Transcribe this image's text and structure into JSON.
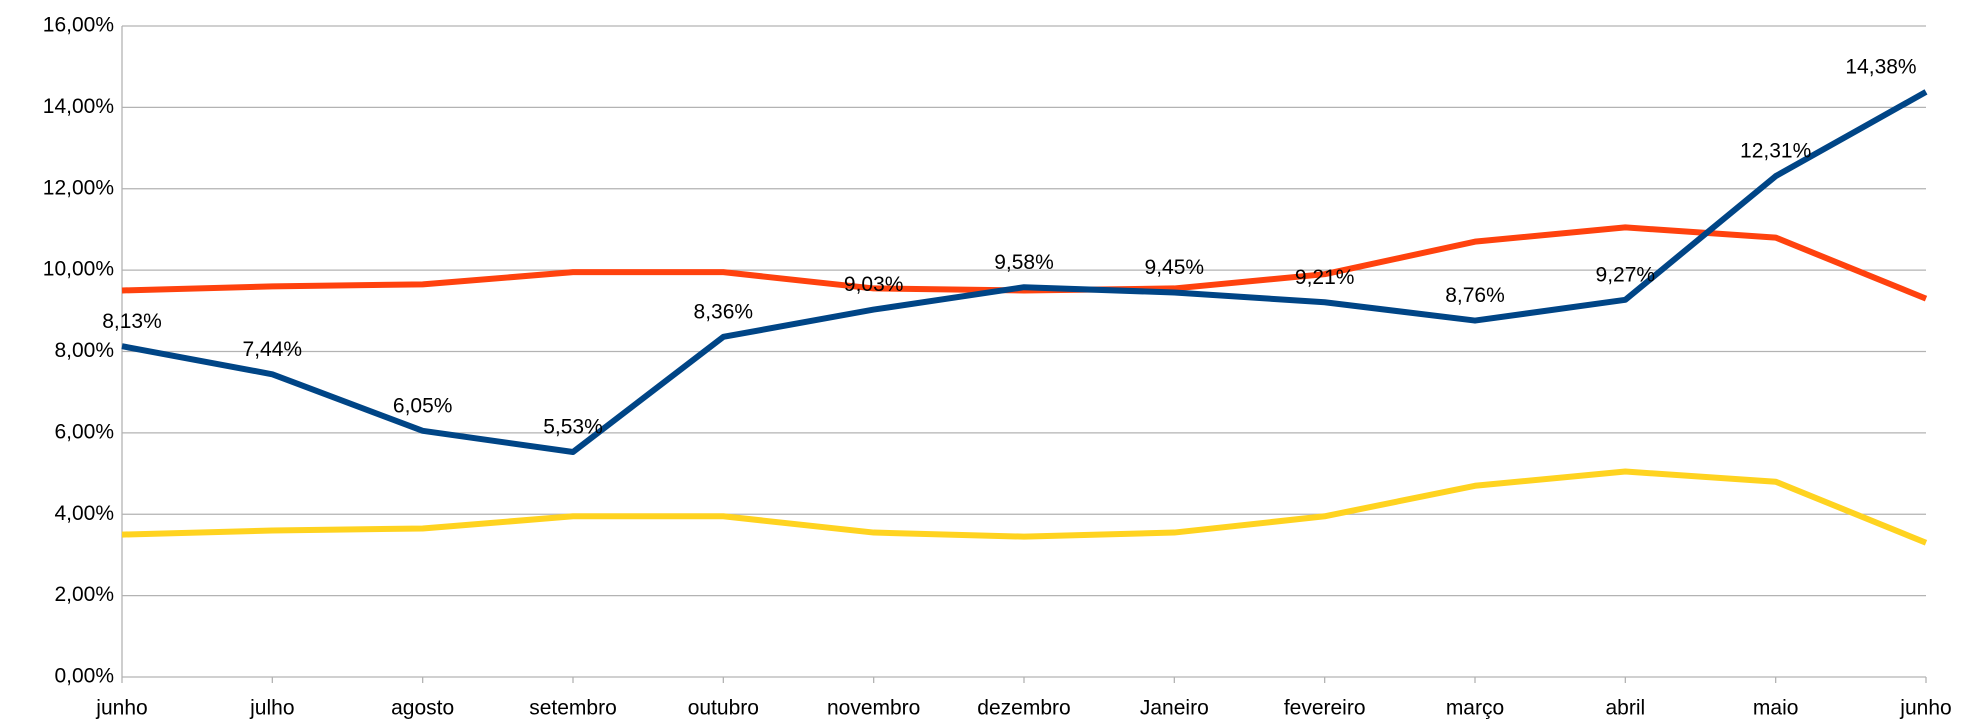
{
  "chart_data": {
    "type": "line",
    "categories": [
      "junho",
      "julho",
      "agosto",
      "setembro",
      "outubro",
      "novembro",
      "dezembro",
      "Janeiro",
      "fevereiro",
      "março",
      "abril",
      "maio",
      "junho"
    ],
    "series": [
      {
        "color": "#ff420e",
        "values": [
          9.5,
          9.6,
          9.65,
          9.95,
          9.95,
          9.55,
          9.5,
          9.55,
          9.9,
          10.7,
          11.05,
          10.8,
          9.3
        ]
      },
      {
        "color": "#ffd320",
        "values": [
          3.5,
          3.6,
          3.65,
          3.95,
          3.95,
          3.55,
          3.45,
          3.55,
          3.95,
          4.7,
          5.05,
          4.8,
          3.3
        ]
      },
      {
        "color": "#004586",
        "values": [
          8.13,
          7.44,
          6.05,
          5.53,
          8.36,
          9.03,
          9.58,
          9.45,
          9.21,
          8.76,
          9.27,
          12.31,
          14.38
        ],
        "value_labels": [
          "8,13%",
          "7,44%",
          "6,05%",
          "5,53%",
          "8,36%",
          "9,03%",
          "9,58%",
          "9,45%",
          "9,21%",
          "8,76%",
          "9,27%",
          "12,31%",
          "14,38%"
        ]
      }
    ],
    "ylim": [
      0,
      16
    ],
    "yticks": [
      {
        "value": 0,
        "label": "0,00%"
      },
      {
        "value": 2,
        "label": "2,00%"
      },
      {
        "value": 4,
        "label": "4,00%"
      },
      {
        "value": 6,
        "label": "6,00%"
      },
      {
        "value": 8,
        "label": "8,00%"
      },
      {
        "value": 10,
        "label": "10,00%"
      },
      {
        "value": 12,
        "label": "12,00%"
      },
      {
        "value": 14,
        "label": "14,00%"
      },
      {
        "value": 16,
        "label": "16,00%"
      }
    ],
    "grid": true
  }
}
